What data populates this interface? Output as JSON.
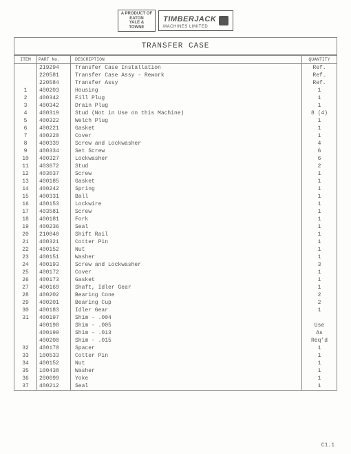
{
  "logo": {
    "left_box_lines": [
      "A PRODUCT OF",
      "EATON",
      "YALE &",
      "TOWNE"
    ],
    "brand": "TIMBERJACK",
    "sub": "MACHINES LIMITED"
  },
  "title": "TRANSFER CASE",
  "columns": [
    "ITEM",
    "PART No.",
    "DESCRIPTION",
    "QUANTITY"
  ],
  "rows": [
    {
      "item": "",
      "part": "219294",
      "desc": "Transfer Case Installation",
      "qty": "Ref."
    },
    {
      "item": "",
      "part": "220581",
      "desc": "Transfer Case Assy - Rework",
      "qty": "Ref."
    },
    {
      "item": "",
      "part": "220584",
      "desc": "Transfer Assy",
      "qty": "Ref."
    },
    {
      "item": "1",
      "part": "400203",
      "desc": "Housing",
      "qty": "1"
    },
    {
      "item": "2",
      "part": "400342",
      "desc": "Fill Plug",
      "qty": "1"
    },
    {
      "item": "3",
      "part": "400342",
      "desc": "Drain Plug",
      "qty": "1"
    },
    {
      "item": "4",
      "part": "400319",
      "desc": "Stud (Not in Use on this Machine)",
      "qty": "8 (4)"
    },
    {
      "item": "5",
      "part": "400322",
      "desc": "Welch Plug",
      "qty": "1"
    },
    {
      "item": "6",
      "part": "400221",
      "desc": "Gasket",
      "qty": "1"
    },
    {
      "item": "7",
      "part": "400220",
      "desc": "Cover",
      "qty": "1"
    },
    {
      "item": "8",
      "part": "400339",
      "desc": "Screw and Lockwasher",
      "qty": "4"
    },
    {
      "item": "9",
      "part": "400334",
      "desc": "Set Screw",
      "qty": "6"
    },
    {
      "item": "10",
      "part": "400327",
      "desc": "Lockwasher",
      "qty": "6"
    },
    {
      "item": "11",
      "part": "403672",
      "desc": "Stud",
      "qty": "2"
    },
    {
      "item": "12",
      "part": "403037",
      "desc": "Screw",
      "qty": "1"
    },
    {
      "item": "13",
      "part": "400185",
      "desc": "Gasket",
      "qty": "1"
    },
    {
      "item": "14",
      "part": "400242",
      "desc": "Spring",
      "qty": "1"
    },
    {
      "item": "15",
      "part": "400331",
      "desc": "Ball",
      "qty": "1"
    },
    {
      "item": "16",
      "part": "400153",
      "desc": "Lockwire",
      "qty": "1"
    },
    {
      "item": "17",
      "part": "403581",
      "desc": "Screw",
      "qty": "1"
    },
    {
      "item": "18",
      "part": "400181",
      "desc": "Fork",
      "qty": "1"
    },
    {
      "item": "19",
      "part": "400236",
      "desc": "Seal",
      "qty": "1"
    },
    {
      "item": "20",
      "part": "210040",
      "desc": "Shift Rail",
      "qty": "1"
    },
    {
      "item": "21",
      "part": "400321",
      "desc": "Cotter Pin",
      "qty": "1"
    },
    {
      "item": "22",
      "part": "400152",
      "desc": "Nut",
      "qty": "1"
    },
    {
      "item": "23",
      "part": "400151",
      "desc": "Washer",
      "qty": "1"
    },
    {
      "item": "24",
      "part": "400193",
      "desc": "Screw and Lockwasher",
      "qty": "3"
    },
    {
      "item": "25",
      "part": "400172",
      "desc": "Cover",
      "qty": "1"
    },
    {
      "item": "26",
      "part": "400173",
      "desc": "Gasket",
      "qty": "1"
    },
    {
      "item": "27",
      "part": "400169",
      "desc": "Shaft, Idler Gear",
      "qty": "1"
    },
    {
      "item": "28",
      "part": "400202",
      "desc": "Bearing Cone",
      "qty": "2"
    },
    {
      "item": "29",
      "part": "400201",
      "desc": "Bearing Cup",
      "qty": "2"
    },
    {
      "item": "30",
      "part": "400183",
      "desc": "Idler Gear",
      "qty": "1"
    },
    {
      "item": "31",
      "part": "400197",
      "desc": "Shim - .004",
      "qty": ""
    },
    {
      "item": "",
      "part": "400198",
      "desc": "Shim - .005",
      "qty": "Use"
    },
    {
      "item": "",
      "part": "400199",
      "desc": "Shim - .013",
      "qty": "As"
    },
    {
      "item": "",
      "part": "400200",
      "desc": "Shim - .015",
      "qty": "Req'd"
    },
    {
      "item": "32",
      "part": "400170",
      "desc": "Spacer",
      "qty": "1"
    },
    {
      "item": "33",
      "part": "100533",
      "desc": "Cotter Pin",
      "qty": "1"
    },
    {
      "item": "34",
      "part": "400152",
      "desc": "Nut",
      "qty": "1"
    },
    {
      "item": "35",
      "part": "100438",
      "desc": "Washer",
      "qty": "1"
    },
    {
      "item": "36",
      "part": "200099",
      "desc": "Yoke",
      "qty": "1"
    },
    {
      "item": "37",
      "part": "400212",
      "desc": "Seal",
      "qty": "1"
    }
  ],
  "page_number": "C1.1"
}
